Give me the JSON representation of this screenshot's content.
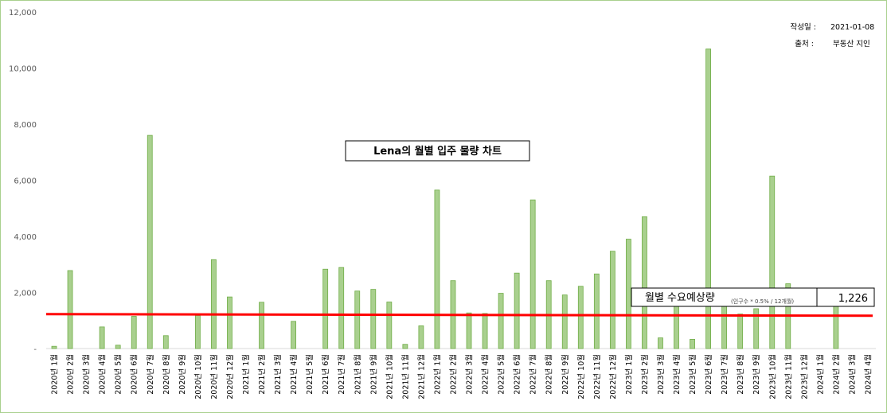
{
  "chart_data": {
    "type": "bar",
    "title": "Lena의 월별 입주 물량 차트",
    "categories": [
      "2020년 1월",
      "2020년 2월",
      "2020년 3월",
      "2020년 4월",
      "2020년 5월",
      "2020년 6월",
      "2020년 7월",
      "2020년 8월",
      "2020년 9월",
      "2020년 10월",
      "2020년 11월",
      "2020년 12월",
      "2021년 1월",
      "2021년 2월",
      "2021년 3월",
      "2021년 4월",
      "2021년 5월",
      "2021년 6월",
      "2021년 7월",
      "2021년 8월",
      "2021년 9월",
      "2021년 10월",
      "2021년 11월",
      "2021년 12월",
      "2022년 1월",
      "2022년 2월",
      "2022년 3월",
      "2022년 4월",
      "2022년 5월",
      "2022년 6월",
      "2022년 7월",
      "2022년 8월",
      "2022년 9월",
      "2022년 10월",
      "2022년 11월",
      "2022년 12월",
      "2023년 1월",
      "2023년 2월",
      "2023년 3월",
      "2023년 4월",
      "2023년 5월",
      "2023년 6월",
      "2023년 7월",
      "2023년 8월",
      "2023년 9월",
      "2023년 10월",
      "2023년 11월",
      "2023년 12월",
      "2024년 1월",
      "2024년 2월",
      "2024년 3월",
      "2024년 4월"
    ],
    "values": [
      80,
      2780,
      0,
      770,
      120,
      1150,
      7600,
      460,
      0,
      1180,
      3170,
      1840,
      0,
      1650,
      0,
      970,
      0,
      2830,
      2890,
      2050,
      2110,
      1660,
      150,
      810,
      5650,
      2420,
      1270,
      1250,
      1970,
      2690,
      5300,
      2420,
      1910,
      2220,
      2660,
      3470,
      3900,
      4700,
      380,
      1880,
      330,
      10680,
      1700,
      1230,
      1420,
      6150,
      2310,
      0,
      0,
      1510,
      0,
      0
    ],
    "ylim": [
      0,
      12000
    ],
    "yticks": [
      {
        "value": 0,
        "label": "-"
      },
      {
        "value": 2000,
        "label": "2,000"
      },
      {
        "value": 4000,
        "label": "4,000"
      },
      {
        "value": 6000,
        "label": "6,000"
      },
      {
        "value": 8000,
        "label": "8,000"
      },
      {
        "value": 10000,
        "label": "10,000"
      },
      {
        "value": 12000,
        "label": "12,000"
      }
    ],
    "reference_line": {
      "value": 1226
    },
    "grid": false,
    "legend": "none",
    "bar_color": "#a9d08e",
    "bar_edge_color": "#70ad47",
    "line_color": "#ff0000"
  },
  "meta": {
    "date_label": "작성일 :",
    "date_value": "2021-01-08",
    "source_label": "출처 :",
    "source_value": "부동산 지인"
  },
  "demand_box": {
    "label": "월별 수요예상량",
    "note": "(인구수 * 0.5% / 12개월)",
    "value": "1,226"
  }
}
